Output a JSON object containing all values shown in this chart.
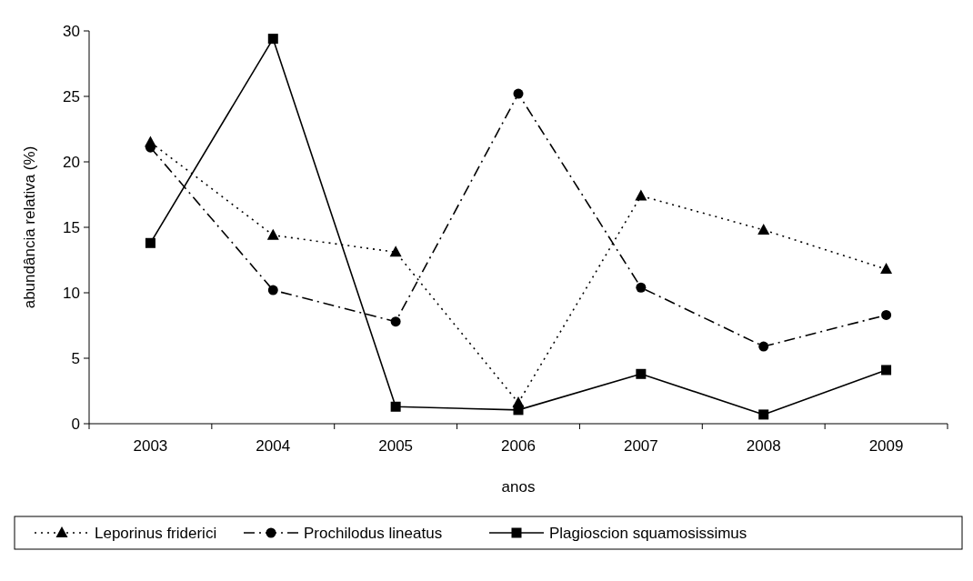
{
  "chart_data": {
    "type": "line",
    "xlabel": "anos",
    "ylabel": "abundância relativa (%)",
    "categories": [
      "2003",
      "2004",
      "2005",
      "2006",
      "2007",
      "2008",
      "2009"
    ],
    "ylim": [
      0,
      30
    ],
    "yticks": [
      0,
      5,
      10,
      15,
      20,
      25,
      30
    ],
    "grid": false,
    "legend": "bottom",
    "series": [
      {
        "name": "Leporinus friderici",
        "color": "#000000",
        "marker": "triangle",
        "line_style": "dotted",
        "values": [
          21.5,
          14.4,
          13.1,
          1.6,
          17.4,
          14.8,
          11.8
        ]
      },
      {
        "name": "Prochilodus lineatus",
        "color": "#000000",
        "marker": "circle",
        "line_style": "dashdot",
        "values": [
          21.1,
          10.2,
          7.8,
          25.2,
          10.4,
          5.9,
          8.3
        ]
      },
      {
        "name": "Plagioscion squamosissimus",
        "color": "#000000",
        "marker": "square",
        "line_style": "solid",
        "values": [
          13.8,
          29.4,
          1.3,
          1.05,
          3.8,
          0.7,
          4.1
        ]
      }
    ]
  }
}
